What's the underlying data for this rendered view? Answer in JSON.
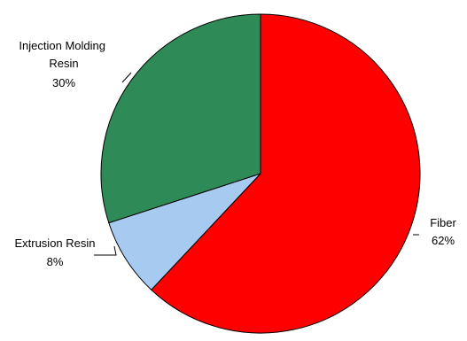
{
  "chart_data": {
    "type": "pie",
    "title": "",
    "slices": [
      {
        "label": "Fiber",
        "value": 62,
        "percent_label": "62%",
        "color": "#ff0000"
      },
      {
        "label": "Extrusion Resin",
        "value": 8,
        "percent_label": "8%",
        "color": "#a6caf0"
      },
      {
        "label": "Injection Molding Resin",
        "value": 30,
        "percent_label": "30%",
        "color": "#2e8b57"
      }
    ],
    "legend": "none",
    "start_angle": "12 o'clock",
    "direction": "clockwise"
  }
}
